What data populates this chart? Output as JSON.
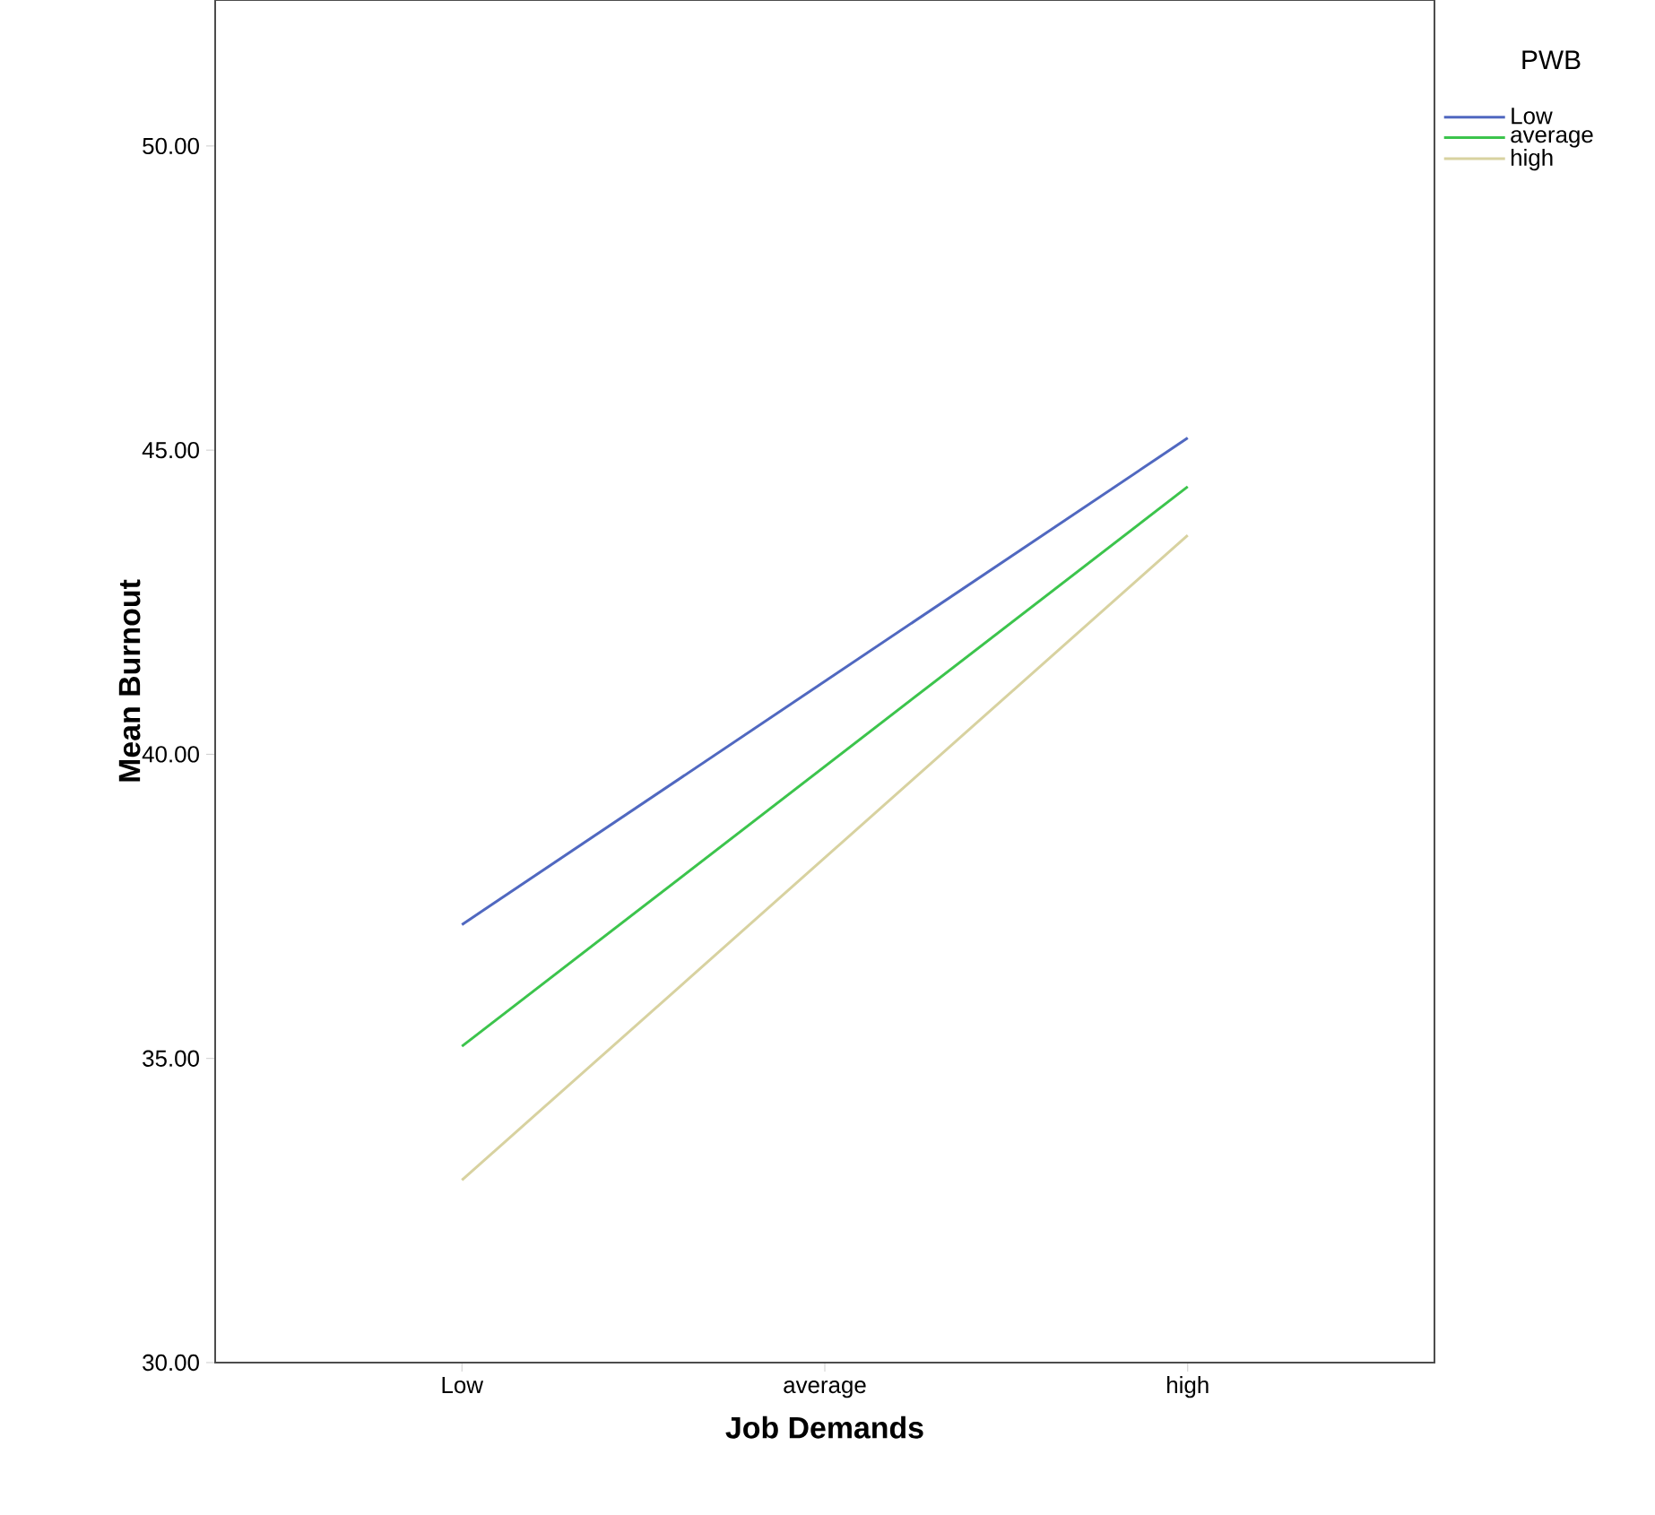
{
  "chart_data": {
    "type": "line",
    "xlabel": "Job Demands",
    "ylabel": "Mean Burnout",
    "legend_title": "PWB",
    "legend": "right",
    "categories": [
      "Low",
      "average",
      "high"
    ],
    "series": [
      {
        "name": "Low",
        "color": "#5068c0",
        "values": [
          37.2,
          41.2,
          45.2
        ]
      },
      {
        "name": "average",
        "color": "#3cc44c",
        "values": [
          35.2,
          39.8,
          44.4
        ]
      },
      {
        "name": "high",
        "color": "#d8d2a0",
        "values": [
          33.0,
          38.3,
          43.6
        ]
      }
    ],
    "ylim": [
      30,
      52.4
    ],
    "yticks": [
      {
        "value": 30,
        "label": "30.00"
      },
      {
        "value": 35,
        "label": "35.00"
      },
      {
        "value": 40,
        "label": "40.00"
      },
      {
        "value": 45,
        "label": "45.00"
      },
      {
        "value": 50,
        "label": "50.00"
      }
    ]
  }
}
